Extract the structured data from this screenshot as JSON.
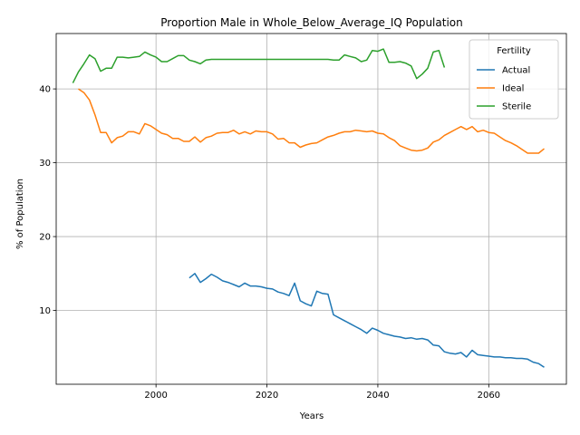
{
  "chart_data": {
    "type": "line",
    "title": "Proportion Male in Whole_Below_Average_IQ Population",
    "xlabel": "Years",
    "ylabel": "% of Population",
    "xlim": [
      1982,
      2074
    ],
    "ylim": [
      0,
      47.5
    ],
    "xticks": [
      2000,
      2020,
      2040,
      2060
    ],
    "yticks": [
      10,
      20,
      30,
      40
    ],
    "grid": true,
    "legend": {
      "title": "Fertility",
      "position": "top-right"
    },
    "series": [
      {
        "name": "Actual",
        "color": "#1f77b4",
        "points": [
          [
            2006,
            14.4
          ],
          [
            2007,
            15.0
          ],
          [
            2008,
            13.8
          ],
          [
            2009,
            14.3
          ],
          [
            2010,
            14.9
          ],
          [
            2011,
            14.5
          ],
          [
            2012,
            14.0
          ],
          [
            2013,
            13.8
          ],
          [
            2014,
            13.5
          ],
          [
            2015,
            13.2
          ],
          [
            2016,
            13.7
          ],
          [
            2017,
            13.3
          ],
          [
            2018,
            13.3
          ],
          [
            2019,
            13.2
          ],
          [
            2020,
            13.0
          ],
          [
            2021,
            12.9
          ],
          [
            2022,
            12.5
          ],
          [
            2023,
            12.3
          ],
          [
            2024,
            12.0
          ],
          [
            2025,
            13.7
          ],
          [
            2026,
            11.3
          ],
          [
            2027,
            10.9
          ],
          [
            2028,
            10.6
          ],
          [
            2029,
            12.6
          ],
          [
            2030,
            12.3
          ],
          [
            2031,
            12.2
          ],
          [
            2032,
            9.4
          ],
          [
            2033,
            9.0
          ],
          [
            2034,
            8.6
          ],
          [
            2035,
            8.2
          ],
          [
            2036,
            7.8
          ],
          [
            2037,
            7.4
          ],
          [
            2038,
            6.9
          ],
          [
            2039,
            7.6
          ],
          [
            2040,
            7.3
          ],
          [
            2041,
            6.9
          ],
          [
            2042,
            6.7
          ],
          [
            2043,
            6.5
          ],
          [
            2044,
            6.4
          ],
          [
            2045,
            6.2
          ],
          [
            2046,
            6.3
          ],
          [
            2047,
            6.1
          ],
          [
            2048,
            6.2
          ],
          [
            2049,
            6.0
          ],
          [
            2050,
            5.3
          ],
          [
            2051,
            5.2
          ],
          [
            2052,
            4.4
          ],
          [
            2053,
            4.2
          ],
          [
            2054,
            4.1
          ],
          [
            2055,
            4.3
          ],
          [
            2056,
            3.7
          ],
          [
            2057,
            4.6
          ],
          [
            2058,
            4.0
          ],
          [
            2059,
            3.9
          ],
          [
            2060,
            3.8
          ],
          [
            2061,
            3.7
          ],
          [
            2062,
            3.7
          ],
          [
            2063,
            3.6
          ],
          [
            2064,
            3.6
          ],
          [
            2065,
            3.5
          ],
          [
            2066,
            3.5
          ],
          [
            2067,
            3.4
          ],
          [
            2068,
            3.0
          ],
          [
            2069,
            2.8
          ],
          [
            2070,
            2.3
          ]
        ]
      },
      {
        "name": "Ideal",
        "color": "#ff7f0e",
        "points": [
          [
            1986,
            40.0
          ],
          [
            1987,
            39.5
          ],
          [
            1988,
            38.5
          ],
          [
            1989,
            36.5
          ],
          [
            1990,
            34.1
          ],
          [
            1991,
            34.1
          ],
          [
            1992,
            32.7
          ],
          [
            1993,
            33.4
          ],
          [
            1994,
            33.6
          ],
          [
            1995,
            34.2
          ],
          [
            1996,
            34.2
          ],
          [
            1997,
            33.9
          ],
          [
            1998,
            35.3
          ],
          [
            1999,
            35.0
          ],
          [
            2000,
            34.5
          ],
          [
            2001,
            34.0
          ],
          [
            2002,
            33.8
          ],
          [
            2003,
            33.3
          ],
          [
            2004,
            33.3
          ],
          [
            2005,
            32.9
          ],
          [
            2006,
            32.9
          ],
          [
            2007,
            33.5
          ],
          [
            2008,
            32.8
          ],
          [
            2009,
            33.4
          ],
          [
            2010,
            33.6
          ],
          [
            2011,
            34.0
          ],
          [
            2012,
            34.1
          ],
          [
            2013,
            34.1
          ],
          [
            2014,
            34.4
          ],
          [
            2015,
            33.9
          ],
          [
            2016,
            34.2
          ],
          [
            2017,
            33.9
          ],
          [
            2018,
            34.3
          ],
          [
            2019,
            34.2
          ],
          [
            2020,
            34.2
          ],
          [
            2021,
            33.9
          ],
          [
            2022,
            33.2
          ],
          [
            2023,
            33.3
          ],
          [
            2024,
            32.7
          ],
          [
            2025,
            32.7
          ],
          [
            2026,
            32.1
          ],
          [
            2027,
            32.4
          ],
          [
            2028,
            32.6
          ],
          [
            2029,
            32.7
          ],
          [
            2030,
            33.1
          ],
          [
            2031,
            33.5
          ],
          [
            2032,
            33.7
          ],
          [
            2033,
            34.0
          ],
          [
            2034,
            34.2
          ],
          [
            2035,
            34.2
          ],
          [
            2036,
            34.4
          ],
          [
            2037,
            34.3
          ],
          [
            2038,
            34.2
          ],
          [
            2039,
            34.3
          ],
          [
            2040,
            34.0
          ],
          [
            2041,
            33.9
          ],
          [
            2042,
            33.4
          ],
          [
            2043,
            33.0
          ],
          [
            2044,
            32.3
          ],
          [
            2045,
            32.0
          ],
          [
            2046,
            31.7
          ],
          [
            2047,
            31.6
          ],
          [
            2048,
            31.7
          ],
          [
            2049,
            32.0
          ],
          [
            2050,
            32.8
          ],
          [
            2051,
            33.1
          ],
          [
            2052,
            33.7
          ],
          [
            2053,
            34.1
          ],
          [
            2054,
            34.5
          ],
          [
            2055,
            34.9
          ],
          [
            2056,
            34.5
          ],
          [
            2057,
            34.9
          ],
          [
            2058,
            34.2
          ],
          [
            2059,
            34.4
          ],
          [
            2060,
            34.1
          ],
          [
            2061,
            34.0
          ],
          [
            2062,
            33.5
          ],
          [
            2063,
            33.0
          ],
          [
            2064,
            32.7
          ],
          [
            2065,
            32.3
          ],
          [
            2066,
            31.8
          ],
          [
            2067,
            31.3
          ],
          [
            2068,
            31.3
          ],
          [
            2069,
            31.3
          ],
          [
            2070,
            31.9
          ]
        ]
      },
      {
        "name": "Sterile",
        "color": "#2ca02c",
        "points": [
          [
            1985,
            40.8
          ],
          [
            1986,
            42.3
          ],
          [
            1987,
            43.4
          ],
          [
            1988,
            44.6
          ],
          [
            1989,
            44.1
          ],
          [
            1990,
            42.4
          ],
          [
            1991,
            42.8
          ],
          [
            1992,
            42.8
          ],
          [
            1993,
            44.3
          ],
          [
            1994,
            44.3
          ],
          [
            1995,
            44.2
          ],
          [
            1996,
            44.3
          ],
          [
            1997,
            44.4
          ],
          [
            1998,
            45.0
          ],
          [
            1999,
            44.6
          ],
          [
            2000,
            44.3
          ],
          [
            2001,
            43.7
          ],
          [
            2002,
            43.7
          ],
          [
            2003,
            44.1
          ],
          [
            2004,
            44.5
          ],
          [
            2005,
            44.5
          ],
          [
            2006,
            43.9
          ],
          [
            2007,
            43.7
          ],
          [
            2008,
            43.4
          ],
          [
            2009,
            43.9
          ],
          [
            2010,
            44.0
          ],
          [
            2011,
            44.0
          ],
          [
            2012,
            44.0
          ],
          [
            2013,
            44.0
          ],
          [
            2014,
            44.0
          ],
          [
            2015,
            44.0
          ],
          [
            2016,
            44.0
          ],
          [
            2017,
            44.0
          ],
          [
            2018,
            44.0
          ],
          [
            2019,
            44.0
          ],
          [
            2020,
            44.0
          ],
          [
            2021,
            44.0
          ],
          [
            2022,
            44.0
          ],
          [
            2023,
            44.0
          ],
          [
            2024,
            44.0
          ],
          [
            2025,
            44.0
          ],
          [
            2026,
            44.0
          ],
          [
            2027,
            44.0
          ],
          [
            2028,
            44.0
          ],
          [
            2029,
            44.0
          ],
          [
            2030,
            44.0
          ],
          [
            2031,
            44.0
          ],
          [
            2032,
            43.9
          ],
          [
            2033,
            43.9
          ],
          [
            2034,
            44.6
          ],
          [
            2035,
            44.4
          ],
          [
            2036,
            44.2
          ],
          [
            2037,
            43.7
          ],
          [
            2038,
            43.9
          ],
          [
            2039,
            45.2
          ],
          [
            2040,
            45.1
          ],
          [
            2041,
            45.4
          ],
          [
            2042,
            43.6
          ],
          [
            2043,
            43.6
          ],
          [
            2044,
            43.7
          ],
          [
            2045,
            43.5
          ],
          [
            2046,
            43.1
          ],
          [
            2047,
            41.4
          ],
          [
            2048,
            42.0
          ],
          [
            2049,
            42.8
          ],
          [
            2050,
            45.0
          ],
          [
            2051,
            45.2
          ],
          [
            2052,
            42.9
          ]
        ]
      }
    ]
  }
}
